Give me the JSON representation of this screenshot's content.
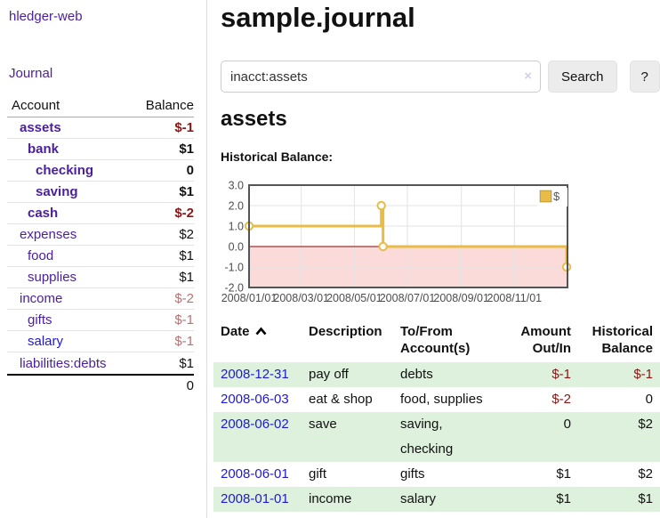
{
  "app": {
    "brand": "hledger-web",
    "nav_journal": "Journal"
  },
  "colors": {
    "purple_link": "#4b1ea0",
    "blue_link": "#2119d0",
    "neg_dark": "#8b1515",
    "neg_light": "#bb6f6f",
    "row_shade": "#ddf1dc",
    "btn_bg": "#ececec"
  },
  "sidebar": {
    "accounts_header": {
      "account": "Account",
      "balance": "Balance"
    },
    "accounts": [
      {
        "name": "assets",
        "depth": 1,
        "bold": true,
        "link_color": "purple",
        "balance": "$-1",
        "balance_class": "neg-dark"
      },
      {
        "name": "bank",
        "depth": 2,
        "bold": true,
        "link_color": "purple",
        "balance": "$1",
        "balance_class": ""
      },
      {
        "name": "checking",
        "depth": 3,
        "bold": true,
        "link_color": "purple",
        "balance": "0",
        "balance_class": ""
      },
      {
        "name": "saving",
        "depth": 3,
        "bold": true,
        "link_color": "purple",
        "balance": "$1",
        "balance_class": ""
      },
      {
        "name": "cash",
        "depth": 2,
        "bold": true,
        "link_color": "purple",
        "balance": "$-2",
        "balance_class": "neg-dark"
      },
      {
        "name": "expenses",
        "depth": 1,
        "bold": false,
        "link_color": "purple",
        "balance": "$2",
        "balance_class": ""
      },
      {
        "name": "food",
        "depth": 2,
        "bold": false,
        "link_color": "purple",
        "balance": "$1",
        "balance_class": ""
      },
      {
        "name": "supplies",
        "depth": 2,
        "bold": false,
        "link_color": "purple",
        "balance": "$1",
        "balance_class": ""
      },
      {
        "name": "income",
        "depth": 1,
        "bold": false,
        "link_color": "purple",
        "balance": "$-2",
        "balance_class": "neg-light"
      },
      {
        "name": "gifts",
        "depth": 2,
        "bold": false,
        "link_color": "purple",
        "balance": "$-1",
        "balance_class": "neg-light"
      },
      {
        "name": "salary",
        "depth": 2,
        "bold": false,
        "link_color": "blue",
        "balance": "$-1",
        "balance_class": "neg-light"
      },
      {
        "name": "liabilities:debts",
        "depth": 1,
        "bold": false,
        "link_color": "purple",
        "balance": "$1",
        "balance_class": ""
      }
    ],
    "total": "0"
  },
  "header": {
    "title": "sample.journal"
  },
  "search": {
    "value": "inacct:assets",
    "clear_icon": "×",
    "button": "Search",
    "help_button": "?"
  },
  "main": {
    "section_title": "assets",
    "chart_label": "Historical Balance:"
  },
  "chart_data": {
    "type": "line",
    "title": "Historical Balance",
    "step": true,
    "series": [
      {
        "name": "$",
        "color": "#e8bc45",
        "points": [
          [
            "2008/01/01",
            1
          ],
          [
            "2008/06/01",
            2
          ],
          [
            "2008/06/03",
            0
          ],
          [
            "2008/12/31",
            -1
          ]
        ]
      }
    ],
    "ylim": [
      -2,
      3
    ],
    "yticks": [
      "3.0",
      "2.0",
      "1.0",
      "0.0",
      "-1.0",
      "-2.0"
    ],
    "xticks": [
      "2008/01/01",
      "2008/03/01",
      "2008/05/01",
      "2008/07/01",
      "2008/09/01",
      "2008/11/01"
    ],
    "negative_region_fill": "#fbdada",
    "zero_line_color": "#8b0000",
    "grid": true,
    "legend": {
      "label": "$",
      "position": "top-right"
    }
  },
  "register": {
    "columns": {
      "date": "Date",
      "description": "Description",
      "accounts": "To/From Account(s)",
      "amount": "Amount Out/In",
      "balance": "Historical Balance"
    },
    "rows": [
      {
        "date": "2008-12-31",
        "description": "pay off",
        "accounts": "debts",
        "amount": "$-1",
        "amount_neg": true,
        "balance": "$-1",
        "balance_neg": true,
        "shaded": true
      },
      {
        "date": "2008-06-03",
        "description": "eat & shop",
        "accounts": "food, supplies",
        "amount": "$-2",
        "amount_neg": true,
        "balance": "0",
        "balance_neg": false,
        "shaded": false
      },
      {
        "date": "2008-06-02",
        "description": "save",
        "accounts": "saving, checking",
        "amount": "0",
        "amount_neg": false,
        "balance": "$2",
        "balance_neg": false,
        "shaded": true
      },
      {
        "date": "2008-06-01",
        "description": "gift",
        "accounts": "gifts",
        "amount": "$1",
        "amount_neg": false,
        "balance": "$2",
        "balance_neg": false,
        "shaded": false
      },
      {
        "date": "2008-01-01",
        "description": "income",
        "accounts": "salary",
        "amount": "$1",
        "amount_neg": false,
        "balance": "$1",
        "balance_neg": false,
        "shaded": true
      }
    ]
  }
}
